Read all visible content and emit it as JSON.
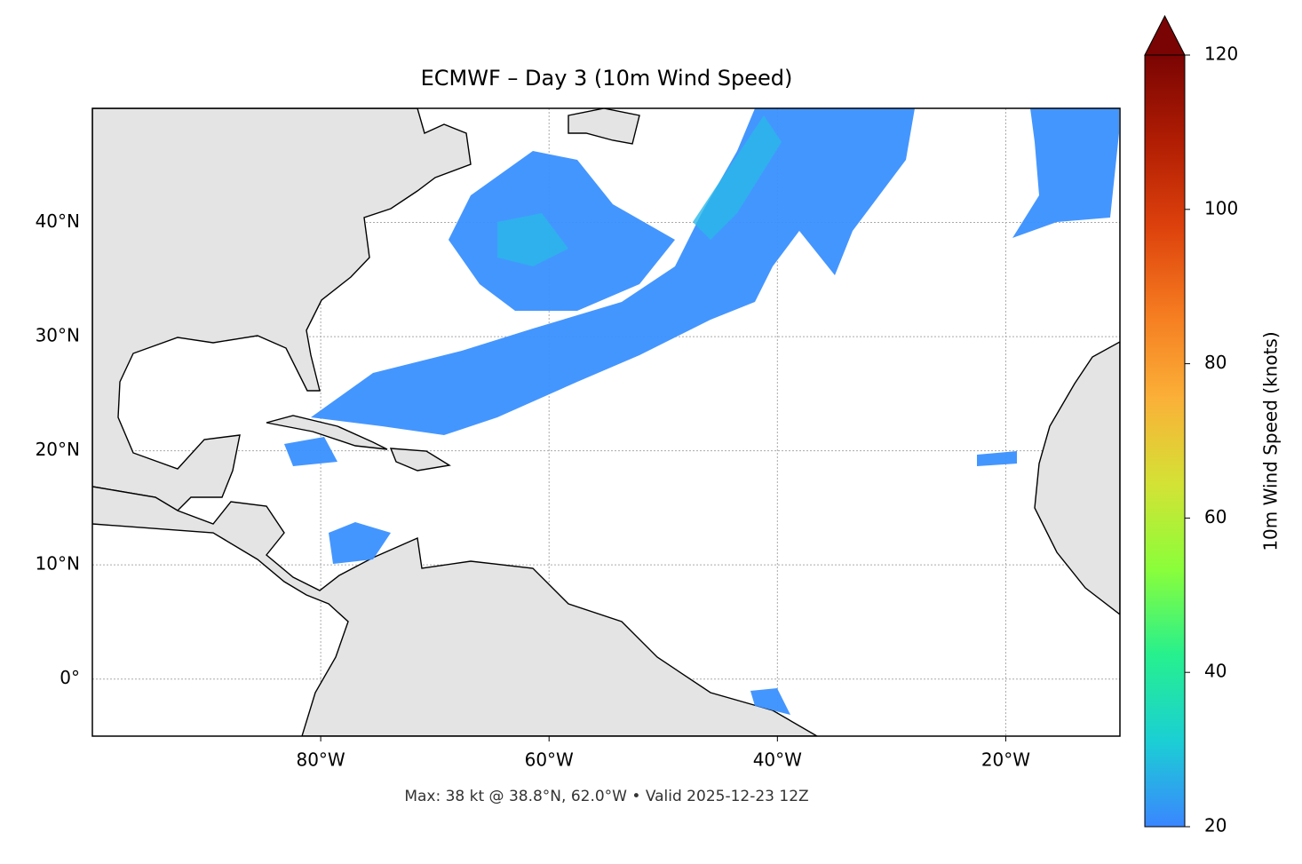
{
  "map": {
    "title": "ECMWF – Day 3 (10m Wind Speed)",
    "xlim": [
      -100,
      -10
    ],
    "ylim": [
      -5,
      50
    ],
    "xticks": [
      {
        "value": -80,
        "label": "80°W"
      },
      {
        "value": -60,
        "label": "60°W"
      },
      {
        "value": -40,
        "label": "40°W"
      },
      {
        "value": -20,
        "label": "20°W"
      }
    ],
    "yticks": [
      {
        "value": 0,
        "label": "0°"
      },
      {
        "value": 10,
        "label": "10°N"
      },
      {
        "value": 20,
        "label": "20°N"
      },
      {
        "value": 30,
        "label": "30°N"
      },
      {
        "value": 40,
        "label": "40°N"
      }
    ],
    "grid": true,
    "footer": "Max: 38 kt @ 38.8°N, 62.0°W • Valid 2025-12-23 12Z"
  },
  "colorbar": {
    "label": "10m Wind Speed (knots)",
    "lim": [
      20,
      120
    ],
    "ticks": [
      20,
      40,
      60,
      80,
      100,
      120
    ],
    "colors": [
      "#3a86ff",
      "#1bcfd4",
      "#26f08e",
      "#8afe3a",
      "#d4e235",
      "#fbb038",
      "#f57b20",
      "#dd410c",
      "#b01d03",
      "#7a0403"
    ]
  }
}
